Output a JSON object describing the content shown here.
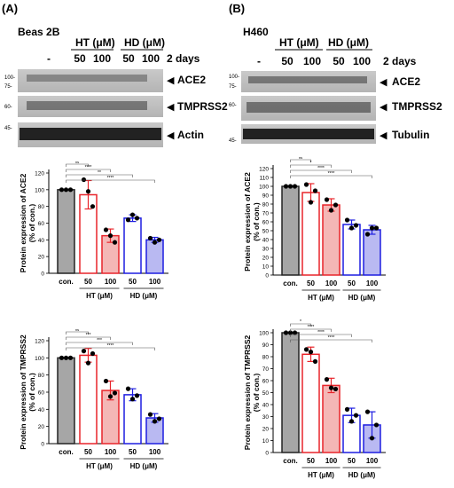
{
  "panels": [
    {
      "letter": "(A)",
      "cell_line": "Beas 2B",
      "header": {
        "group1": "HT (μM)",
        "group2": "HD (μM)",
        "lanes": [
          "-",
          "50",
          "100",
          "50",
          "100"
        ],
        "time": "2 days"
      },
      "blots": [
        {
          "label": "ACE2",
          "markers": [
            "100-",
            "75-"
          ]
        },
        {
          "label": "TMPRSS2",
          "markers": [
            "60-"
          ]
        },
        {
          "label": "Actin",
          "markers": [
            "45-"
          ]
        }
      ]
    },
    {
      "letter": "(B)",
      "cell_line": "H460",
      "header": {
        "group1": "HT (μM)",
        "group2": "HD (μM)",
        "lanes": [
          "-",
          "50",
          "100",
          "50",
          "100"
        ],
        "time": "2 days"
      },
      "blots": [
        {
          "label": "ACE2",
          "markers": [
            "100-",
            "75-"
          ]
        },
        {
          "label": "TMPRSS2",
          "markers": [
            "60-"
          ]
        },
        {
          "label": "Tubulin",
          "markers": [
            "45-"
          ]
        }
      ]
    }
  ],
  "chart_data": [
    {
      "type": "bar",
      "panel": "A",
      "ylabel": "Protein expression of ACE2\n(% of con.)",
      "categories": [
        "con.",
        "50",
        "100",
        "50",
        "100"
      ],
      "groups": [
        "HT (μM)",
        "HD (μM)"
      ],
      "values": [
        100,
        94,
        45,
        66,
        40
      ],
      "errors": [
        0,
        17,
        8,
        4,
        3
      ],
      "points": [
        [
          100,
          100,
          100
        ],
        [
          112,
          98,
          80
        ],
        [
          52,
          45,
          37
        ],
        [
          64,
          70,
          66
        ],
        [
          42,
          37,
          40
        ]
      ],
      "ylim": [
        0,
        120
      ],
      "yticks": [
        0,
        20,
        40,
        60,
        80,
        100,
        120
      ],
      "significance": [
        "ns",
        "****",
        "**",
        "****"
      ],
      "colors": [
        "#a6a6a6",
        "#ffffff",
        "#f4b7b6",
        "#ffffff",
        "#b9b9f2"
      ],
      "edge_colors": [
        "#222222",
        "#e8242a",
        "#e8242a",
        "#1d1de0",
        "#1d1de0"
      ]
    },
    {
      "type": "bar",
      "panel": "A",
      "ylabel": "Protein expression of TMPRSS2\n(% of con.)",
      "categories": [
        "con.",
        "50",
        "100",
        "50",
        "100"
      ],
      "groups": [
        "HT (μM)",
        "HD (μM)"
      ],
      "values": [
        100,
        103,
        62,
        57,
        30
      ],
      "errors": [
        0,
        8,
        11,
        7,
        5
      ],
      "points": [
        [
          100,
          100,
          100
        ],
        [
          108,
          94,
          105
        ],
        [
          73,
          55,
          59
        ],
        [
          64,
          52,
          56
        ],
        [
          34,
          26,
          29
        ]
      ],
      "ylim": [
        0,
        120
      ],
      "yticks": [
        0,
        20,
        40,
        60,
        80,
        100,
        120
      ],
      "significance": [
        "ns",
        "***",
        "***",
        "****"
      ],
      "colors": [
        "#a6a6a6",
        "#ffffff",
        "#f4b7b6",
        "#ffffff",
        "#b9b9f2"
      ],
      "edge_colors": [
        "#222222",
        "#e8242a",
        "#e8242a",
        "#1d1de0",
        "#1d1de0"
      ]
    },
    {
      "type": "bar",
      "panel": "B",
      "ylabel": "Protein expression of ACE2\n(% of con.)",
      "categories": [
        "con.",
        "50",
        "100",
        "50",
        "100"
      ],
      "groups": [
        "HT (μM)",
        "HD (μM)"
      ],
      "values": [
        100,
        93,
        79,
        57,
        51
      ],
      "errors": [
        0,
        10,
        7,
        5,
        5
      ],
      "points": [
        [
          100,
          100,
          100
        ],
        [
          102,
          82,
          95
        ],
        [
          85,
          73,
          79
        ],
        [
          62,
          53,
          56
        ],
        [
          46,
          53,
          53
        ]
      ],
      "ylim": [
        0,
        120
      ],
      "yticks": [
        0,
        10,
        20,
        30,
        40,
        50,
        60,
        70,
        80,
        90,
        100,
        110,
        120
      ],
      "significance": [
        "ns",
        "*",
        "****",
        "****"
      ],
      "colors": [
        "#a6a6a6",
        "#ffffff",
        "#f4b7b6",
        "#ffffff",
        "#b9b9f2"
      ],
      "edge_colors": [
        "#222222",
        "#e8242a",
        "#e8242a",
        "#1d1de0",
        "#1d1de0"
      ]
    },
    {
      "type": "bar",
      "panel": "B",
      "ylabel": "Protein expression of TMPRSS2\n(% of con.)",
      "categories": [
        "con.",
        "50",
        "100",
        "50",
        "100"
      ],
      "groups": [
        "HT (μM)",
        "HD (μM)"
      ],
      "values": [
        100,
        82,
        56,
        31,
        23
      ],
      "errors": [
        0,
        6,
        6,
        6,
        11
      ],
      "points": [
        [
          100,
          100,
          100
        ],
        [
          86,
          84,
          76
        ],
        [
          61,
          54,
          53
        ],
        [
          36,
          26,
          31
        ],
        [
          34,
          12,
          23
        ]
      ],
      "ylim": [
        0,
        100
      ],
      "yticks": [
        0,
        10,
        20,
        30,
        40,
        50,
        60,
        70,
        80,
        90,
        100
      ],
      "significance": [
        "*",
        "****",
        "****",
        "****"
      ],
      "colors": [
        "#a6a6a6",
        "#ffffff",
        "#f4b7b6",
        "#ffffff",
        "#b9b9f2"
      ],
      "edge_colors": [
        "#222222",
        "#e8242a",
        "#e8242a",
        "#1d1de0",
        "#1d1de0"
      ]
    }
  ]
}
